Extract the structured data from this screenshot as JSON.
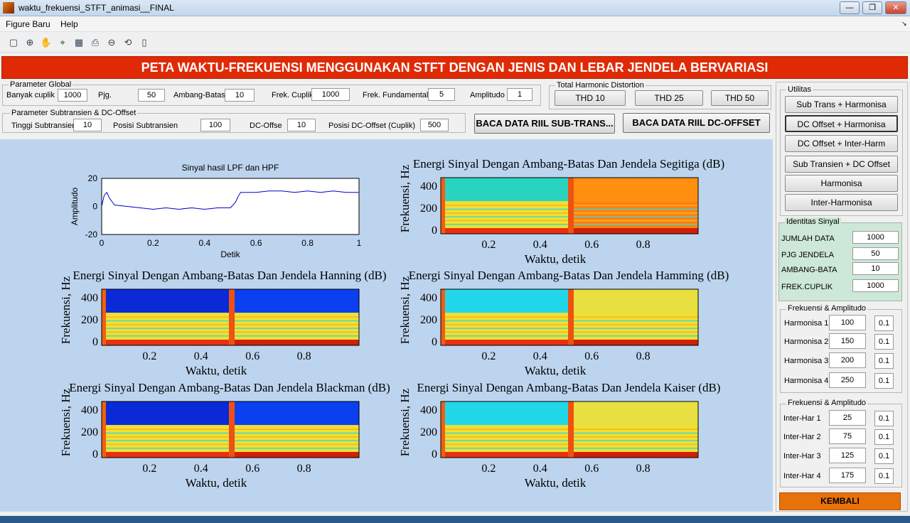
{
  "window": {
    "title": "waktu_frekuensi_STFT_animasi__FINAL",
    "min": "—",
    "max": "❐",
    "close": "✕"
  },
  "menu": [
    "Figure Baru",
    "Help"
  ],
  "banner": "PETA WAKTU-FREKUENSI MENGGUNAKAN STFT DENGAN JENIS DAN LEBAR JENDELA BERVARIASI",
  "param_global": {
    "title": "Parameter Global",
    "banyak_cuplik": {
      "label": "Banyak cuplik",
      "value": "1000"
    },
    "pjg": {
      "label": "Pjg.",
      "value": "50"
    },
    "ambang": {
      "label": "Ambang-Batas",
      "value": "10"
    },
    "frek_cuplik": {
      "label": "Frek. Cuplik",
      "value": "1000"
    },
    "frek_fund": {
      "label": "Frek. Fundamental",
      "value": "5"
    },
    "amplitudo": {
      "label": "Amplitudo",
      "value": "1"
    }
  },
  "thd": {
    "title": "Total Harmonic Distortion",
    "b10": "THD 10",
    "b25": "THD 25",
    "b50": "THD 50"
  },
  "param_sub": {
    "title": "Parameter Subtransien & DC-Offset",
    "tinggi": {
      "label": "Tinggi Subtransien",
      "value": "10"
    },
    "posisi": {
      "label": "Posisi Subtransien",
      "value": "100"
    },
    "dc": {
      "label": "DC-Offse",
      "value": "10"
    },
    "posdc": {
      "label": "Posisi DC-Offset (Cuplik)",
      "value": "500"
    }
  },
  "btn_sub": "BACA DATA RIIL SUB-TRANS...",
  "btn_dc": "BACA DATA RIIL DC-OFFSET",
  "utilitas": {
    "title": "Utilitas",
    "items": [
      "Sub Trans + Harmonisa",
      "DC Offset + Harmonisa",
      "DC Offset + Inter-Harm",
      "Sub Transien + DC Offset",
      "Harmonisa",
      "Inter-Harmonisa"
    ]
  },
  "identitas": {
    "title": "Identitas Sinyal",
    "rows": [
      {
        "label": "JUMLAH DATA",
        "value": "1000"
      },
      {
        "label": "PJG JENDELA",
        "value": "50"
      },
      {
        "label": "AMBANG-BATA",
        "value": "10"
      },
      {
        "label": "FREK.CUPLIK",
        "value": "1000"
      }
    ]
  },
  "harmonisa": {
    "title": "Frekuensi & Amplitudo",
    "rows": [
      {
        "label": "Harmonisa 1",
        "f": "100",
        "a": "0.1"
      },
      {
        "label": "Harmonisa 2",
        "f": "150",
        "a": "0.1"
      },
      {
        "label": "Harmonisa 3",
        "f": "200",
        "a": "0.1"
      },
      {
        "label": "Harmonisa 4",
        "f": "250",
        "a": "0.1"
      }
    ]
  },
  "interhar": {
    "title": "Frekuensi & Amplitudo",
    "rows": [
      {
        "label": "Inter-Har 1",
        "f": "25",
        "a": "0.1"
      },
      {
        "label": "Inter-Har 2",
        "f": "75",
        "a": "0.1"
      },
      {
        "label": "Inter-Har 3",
        "f": "125",
        "a": "0.1"
      },
      {
        "label": "Inter-Har 4",
        "f": "175",
        "a": "0.1"
      }
    ]
  },
  "kembali": "KEMBALI",
  "colors": {
    "banner": "#e02a06",
    "kembali": "#e8720a",
    "plot_bg": "#bdd4ee",
    "signal": "#0000c8"
  },
  "chart_data": [
    {
      "type": "line",
      "title": "Sinyal hasil LPF dan HPF",
      "xlabel": "Detik",
      "ylabel": "Amplitudo",
      "xlim": [
        0,
        1
      ],
      "ylim": [
        -20,
        20
      ],
      "xticks": [
        "0",
        "0.2",
        "0.4",
        "0.6",
        "0.8",
        "1"
      ],
      "yticks": [
        "20",
        "0",
        "-20"
      ],
      "x": [
        0,
        0.01,
        0.02,
        0.03,
        0.05,
        0.1,
        0.15,
        0.2,
        0.25,
        0.3,
        0.35,
        0.4,
        0.45,
        0.5,
        0.52,
        0.53,
        0.54,
        0.6,
        0.65,
        0.7,
        0.75,
        0.8,
        0.85,
        0.9,
        0.95,
        1.0
      ],
      "y": [
        0,
        8,
        10,
        6,
        1,
        0,
        -1,
        -2,
        -1,
        -2,
        -1,
        -2,
        -1,
        -1,
        3,
        7,
        10,
        10,
        11,
        11,
        10,
        11,
        10,
        11,
        10,
        10
      ]
    },
    {
      "type": "heatmap",
      "title": "Energi Sinyal Dengan Ambang-Batas Dan Jendela Segitiga (dB)",
      "xlabel": "Waktu, detik",
      "ylabel": "Frekuensi, Hz",
      "xticks": [
        "0.2",
        "0.4",
        "0.6",
        "0.8"
      ],
      "yticks": [
        "400",
        "200",
        "0"
      ]
    },
    {
      "type": "heatmap",
      "title": "Energi Sinyal Dengan Ambang-Batas Dan Jendela Hanning (dB)",
      "xlabel": "Waktu, detik",
      "ylabel": "Frekuensi, Hz",
      "xticks": [
        "0.2",
        "0.4",
        "0.6",
        "0.8"
      ],
      "yticks": [
        "400",
        "200",
        "0"
      ]
    },
    {
      "type": "heatmap",
      "title": "Energi Sinyal Dengan Ambang-Batas Dan Jendela Hamming (dB)",
      "xlabel": "Waktu, detik",
      "ylabel": "Frekuensi, Hz",
      "xticks": [
        "0.2",
        "0.4",
        "0.6",
        "0.8"
      ],
      "yticks": [
        "400",
        "200",
        "0"
      ]
    },
    {
      "type": "heatmap",
      "title": "Energi Sinyal Dengan Ambang-Batas Dan Jendela Blackman (dB)",
      "xlabel": "Waktu, detik",
      "ylabel": "Frekuensi, Hz",
      "xticks": [
        "0.2",
        "0.4",
        "0.6",
        "0.8"
      ],
      "yticks": [
        "400",
        "200",
        "0"
      ]
    },
    {
      "type": "heatmap",
      "title": "Energi Sinyal Dengan Ambang-Batas Dan Jendela Kaiser (dB)",
      "xlabel": "Waktu, detik",
      "ylabel": "Frekuensi, Hz",
      "xticks": [
        "0.2",
        "0.4",
        "0.6",
        "0.8"
      ],
      "yticks": [
        "400",
        "200",
        "0"
      ]
    }
  ]
}
